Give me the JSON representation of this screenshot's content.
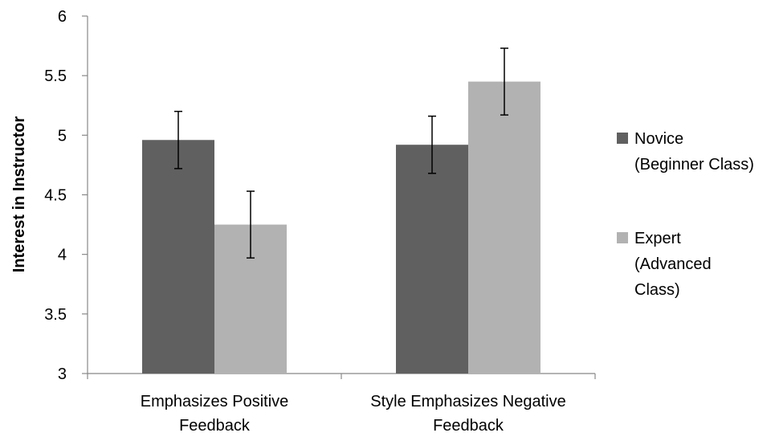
{
  "chart_data": {
    "type": "bar",
    "title": "",
    "xlabel": "",
    "ylabel": "Interest in Instructor",
    "ylim": [
      3,
      6
    ],
    "yticks": [
      "3",
      "3.5",
      "4",
      "4.5",
      "5",
      "5.5",
      "6"
    ],
    "categories": [
      [
        "Emphasizes Positive",
        "Feedback"
      ],
      [
        "Style Emphasizes Negative",
        "Feedback"
      ]
    ],
    "series": [
      {
        "name": [
          "Novice",
          "(Beginner Class)"
        ],
        "color": "#606060",
        "values": [
          4.96,
          4.92
        ],
        "errors": [
          0.24,
          0.24
        ]
      },
      {
        "name": [
          "Expert",
          "(Advanced",
          "Class)"
        ],
        "color": "#b2b2b2",
        "values": [
          4.25,
          5.45
        ],
        "errors": [
          0.28,
          0.28
        ]
      }
    ],
    "grid": false,
    "legend": "right"
  }
}
